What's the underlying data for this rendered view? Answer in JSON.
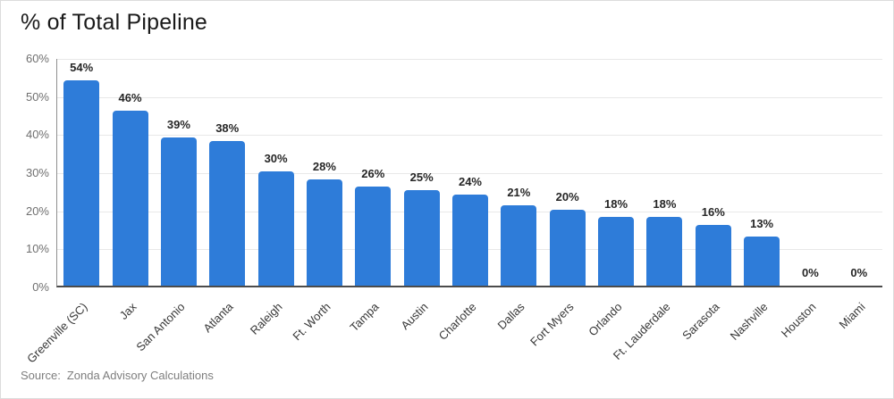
{
  "title": "% of Total Pipeline",
  "source": {
    "prefix": "Source:",
    "text": "Zonda Advisory Calculations"
  },
  "colors": {
    "bar": "#2E7CD9",
    "axis_line": "#4b4b4b",
    "gridline": "#e8e8e8",
    "value_label": "#262626",
    "tick_label": "#6f6f6f"
  },
  "chart_data": {
    "type": "bar",
    "title": "% of Total Pipeline",
    "categories": [
      "Greenville (SC)",
      "Jax",
      "San Antonio",
      "Atlanta",
      "Raleigh",
      "Ft. Worth",
      "Tampa",
      "Austin",
      "Charlotte",
      "Dallas",
      "Fort Myers",
      "Orlando",
      "Ft. Lauderdale",
      "Sarasota",
      "Nashville",
      "Houston",
      "Miami"
    ],
    "values": [
      54,
      46,
      39,
      38,
      30,
      28,
      26,
      25,
      24,
      21,
      20,
      18,
      18,
      16,
      13,
      0,
      0
    ],
    "value_labels": [
      "54%",
      "46%",
      "39%",
      "38%",
      "30%",
      "28%",
      "26%",
      "25%",
      "24%",
      "21%",
      "20%",
      "18%",
      "18%",
      "16%",
      "13%",
      "0%",
      "0%"
    ],
    "xlabel": "",
    "ylabel": "",
    "ylim": [
      0,
      60
    ],
    "ytick_values": [
      0,
      10,
      20,
      30,
      40,
      50,
      60
    ],
    "ytick_labels": [
      "0%",
      "10%",
      "20%",
      "30%",
      "40%",
      "50%",
      "60%"
    ],
    "grid": true,
    "legend": false,
    "bar_color": "#2E7CD9"
  }
}
